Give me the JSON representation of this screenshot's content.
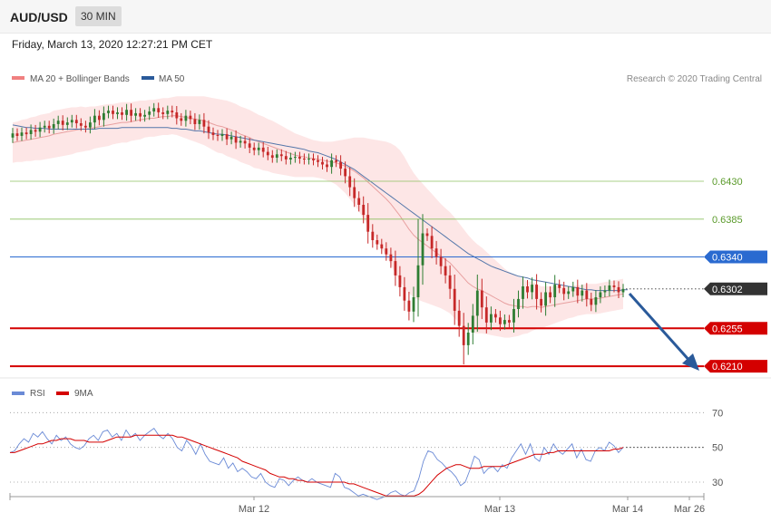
{
  "header": {
    "symbol": "AUD/USD",
    "timeframe": "30 MIN",
    "datetime": "Friday, March 13, 2020 12:27:21 PM CET"
  },
  "legend": {
    "ma20_bb": "MA 20 + Bollinger Bands",
    "ma50": "MA 50",
    "credit": "Research © 2020 Trading Central",
    "rsi": "RSI",
    "rsi_ma": "9MA"
  },
  "colors": {
    "up": "#2e7d32",
    "down": "#c62828",
    "bb_fill": "#fde0e0",
    "ma20": "#e8a0a0",
    "ma50": "#5577aa",
    "resistance_green": "#8cc060",
    "pivot_blue": "#2a6ad0",
    "support_red": "#d40000",
    "current": "#333333",
    "arrow": "#2a5a9a"
  },
  "chart_data": [
    {
      "type": "candlestick",
      "title": "AUD/USD",
      "ylim": [
        0.6195,
        0.654
      ],
      "x_labels": [
        "Mar 12",
        "Mar 13",
        "Mar 14",
        "Mar 26"
      ],
      "levels": [
        {
          "name": "resistance-2",
          "value": 0.643,
          "label": "0.6430",
          "style": "green-thin"
        },
        {
          "name": "resistance-1",
          "value": 0.6385,
          "label": "0.6385",
          "style": "green-thin"
        },
        {
          "name": "pivot",
          "value": 0.634,
          "label": "0.6340",
          "style": "blue"
        },
        {
          "name": "current",
          "value": 0.6302,
          "label": "0.6302",
          "style": "dark-dotted"
        },
        {
          "name": "support-1",
          "value": 0.6255,
          "label": "0.6255",
          "style": "red"
        },
        {
          "name": "support-2",
          "value": 0.621,
          "label": "0.6210",
          "style": "red"
        }
      ],
      "close": [
        0.6487,
        0.6484,
        0.6488,
        0.6486,
        0.6491,
        0.6489,
        0.6494,
        0.6496,
        0.6493,
        0.6498,
        0.6502,
        0.6497,
        0.65,
        0.6503,
        0.6499,
        0.6496,
        0.6494,
        0.65,
        0.6508,
        0.6503,
        0.6511,
        0.6514,
        0.651,
        0.6512,
        0.6509,
        0.6515,
        0.6508,
        0.6511,
        0.6507,
        0.6509,
        0.6513,
        0.6517,
        0.6512,
        0.651,
        0.6514,
        0.6512,
        0.6505,
        0.6502,
        0.6508,
        0.6504,
        0.6498,
        0.6503,
        0.6495,
        0.6488,
        0.6485,
        0.6484,
        0.6486,
        0.648,
        0.6483,
        0.6476,
        0.6478,
        0.6475,
        0.647,
        0.6467,
        0.647,
        0.6465,
        0.6461,
        0.6458,
        0.6462,
        0.646,
        0.6456,
        0.6458,
        0.6459,
        0.6457,
        0.6456,
        0.6457,
        0.6455,
        0.6453,
        0.645,
        0.6447,
        0.6455,
        0.6453,
        0.6445,
        0.6436,
        0.6423,
        0.641,
        0.6402,
        0.639,
        0.637,
        0.636,
        0.6355,
        0.635,
        0.6343,
        0.6335,
        0.6318,
        0.6304,
        0.6288,
        0.6275,
        0.6292,
        0.633,
        0.6368,
        0.6365,
        0.635,
        0.634,
        0.6329,
        0.6318,
        0.6302,
        0.6276,
        0.6258,
        0.6235,
        0.625,
        0.627,
        0.63,
        0.628,
        0.6262,
        0.6272,
        0.6268,
        0.626,
        0.6265,
        0.6262,
        0.6278,
        0.629,
        0.6305,
        0.6298,
        0.6307,
        0.629,
        0.6282,
        0.6298,
        0.6292,
        0.6307,
        0.6303,
        0.6296,
        0.6299,
        0.6304,
        0.6294,
        0.63,
        0.629,
        0.6283,
        0.6292,
        0.6298,
        0.63,
        0.6306,
        0.6304,
        0.6298,
        0.6302
      ],
      "ma20": [
        0.6476,
        0.6477,
        0.6478,
        0.6479,
        0.648,
        0.6481,
        0.6482,
        0.6483,
        0.6484,
        0.6486,
        0.6487,
        0.6488,
        0.6489,
        0.649,
        0.6491,
        0.6492,
        0.6492,
        0.6493,
        0.6494,
        0.6495,
        0.6496,
        0.6497,
        0.6498,
        0.6499,
        0.65,
        0.65,
        0.6501,
        0.6502,
        0.6503,
        0.6504,
        0.6505,
        0.6505,
        0.6506,
        0.6507,
        0.6507,
        0.6508,
        0.6508,
        0.6507,
        0.6506,
        0.6505,
        0.6504,
        0.6503,
        0.6502,
        0.65,
        0.6498,
        0.6496,
        0.6495,
        0.6493,
        0.6491,
        0.6489,
        0.6486,
        0.6484,
        0.6482,
        0.6479,
        0.6477,
        0.6475,
        0.6473,
        0.6471,
        0.6469,
        0.6467,
        0.6465,
        0.6463,
        0.6461,
        0.646,
        0.6459,
        0.6458,
        0.6457,
        0.6456,
        0.6455,
        0.6454,
        0.6453,
        0.6452,
        0.645,
        0.6448,
        0.6445,
        0.6442,
        0.6438,
        0.6434,
        0.6429,
        0.6424,
        0.6419,
        0.6414,
        0.6409,
        0.6403,
        0.6396,
        0.6389,
        0.6381,
        0.6373,
        0.6366,
        0.6361,
        0.6357,
        0.6353,
        0.6349,
        0.6345,
        0.6341,
        0.6337,
        0.6333,
        0.6327,
        0.6321,
        0.6315,
        0.6309,
        0.6305,
        0.6302,
        0.63,
        0.6297,
        0.6294,
        0.6291,
        0.6288,
        0.6285,
        0.6283,
        0.6282,
        0.6281,
        0.6281,
        0.628,
        0.6281,
        0.6281,
        0.628,
        0.6281,
        0.6282,
        0.6283,
        0.6284,
        0.6285,
        0.6286,
        0.6287,
        0.6288,
        0.6289,
        0.629,
        0.629,
        0.629,
        0.6291,
        0.6292,
        0.6293,
        0.6294,
        0.6295,
        0.6296
      ],
      "ma50": [
        0.6497,
        0.6496,
        0.6495,
        0.6494,
        0.6494,
        0.6493,
        0.6493,
        0.6493,
        0.6492,
        0.6492,
        0.6492,
        0.6492,
        0.6492,
        0.6492,
        0.6492,
        0.6492,
        0.6492,
        0.6492,
        0.6492,
        0.6493,
        0.6493,
        0.6493,
        0.6493,
        0.6493,
        0.6494,
        0.6494,
        0.6494,
        0.6494,
        0.6494,
        0.6494,
        0.6494,
        0.6494,
        0.6494,
        0.6494,
        0.6494,
        0.6493,
        0.6493,
        0.6492,
        0.6492,
        0.6491,
        0.649,
        0.649,
        0.6489,
        0.6488,
        0.6487,
        0.6486,
        0.6486,
        0.6485,
        0.6484,
        0.6483,
        0.6482,
        0.6481,
        0.648,
        0.6479,
        0.6478,
        0.6477,
        0.6476,
        0.6475,
        0.6474,
        0.6473,
        0.6472,
        0.6471,
        0.647,
        0.6469,
        0.6468,
        0.6466,
        0.6465,
        0.6464,
        0.6462,
        0.646,
        0.6458,
        0.6456,
        0.6453,
        0.645,
        0.6447,
        0.6444,
        0.644,
        0.6436,
        0.6432,
        0.6428,
        0.6424,
        0.642,
        0.6416,
        0.6412,
        0.6408,
        0.6404,
        0.64,
        0.6396,
        0.6392,
        0.6388,
        0.6384,
        0.638,
        0.6376,
        0.6372,
        0.6368,
        0.6364,
        0.636,
        0.6356,
        0.6352,
        0.6348,
        0.6344,
        0.6341,
        0.6338,
        0.6335,
        0.6332,
        0.6329,
        0.6327,
        0.6325,
        0.6323,
        0.6321,
        0.6319,
        0.6317,
        0.6316,
        0.6315,
        0.6313,
        0.6312,
        0.6311,
        0.631,
        0.6309,
        0.6308,
        0.6307,
        0.6306,
        0.6305,
        0.6304,
        0.6303,
        0.6302,
        0.6301,
        0.6301,
        0.63,
        0.63,
        0.63,
        0.63,
        0.63,
        0.63,
        0.6301,
        0.6301
      ],
      "bb_width": [
        0.0024,
        0.0024,
        0.0025,
        0.0025,
        0.0026,
        0.0026,
        0.0027,
        0.0027,
        0.0027,
        0.0028,
        0.0028,
        0.0028,
        0.0028,
        0.0028,
        0.0027,
        0.0027,
        0.0026,
        0.0026,
        0.0025,
        0.0025,
        0.0025,
        0.0025,
        0.0024,
        0.0024,
        0.0024,
        0.0024,
        0.0023,
        0.0023,
        0.0023,
        0.0022,
        0.0022,
        0.0022,
        0.0022,
        0.0022,
        0.0022,
        0.0022,
        0.0023,
        0.0024,
        0.0025,
        0.0026,
        0.0027,
        0.0028,
        0.0029,
        0.003,
        0.0031,
        0.0032,
        0.0032,
        0.0033,
        0.0033,
        0.0033,
        0.0033,
        0.0033,
        0.0033,
        0.0033,
        0.0032,
        0.0032,
        0.0031,
        0.0031,
        0.003,
        0.0029,
        0.0028,
        0.0027,
        0.0026,
        0.0025,
        0.0024,
        0.0023,
        0.0022,
        0.0022,
        0.0022,
        0.0023,
        0.0024,
        0.0026,
        0.0029,
        0.0032,
        0.0036,
        0.004,
        0.0044,
        0.0048,
        0.0052,
        0.0056,
        0.006,
        0.0064,
        0.0068,
        0.0072,
        0.0076,
        0.0078,
        0.0078,
        0.0076,
        0.0074,
        0.0072,
        0.007,
        0.0068,
        0.0066,
        0.0064,
        0.0062,
        0.0061,
        0.006,
        0.006,
        0.0059,
        0.0058,
        0.0057,
        0.0055,
        0.0053,
        0.0051,
        0.0049,
        0.0047,
        0.0045,
        0.0043,
        0.0041,
        0.0039,
        0.0037,
        0.0035,
        0.0033,
        0.0031,
        0.0029,
        0.0027,
        0.0025,
        0.0024,
        0.0023,
        0.0022,
        0.0021,
        0.002,
        0.0019,
        0.0019,
        0.0018,
        0.0018,
        0.0018,
        0.0018,
        0.0018,
        0.0018,
        0.0018,
        0.0018,
        0.0018,
        0.0018,
        0.0018,
        0.0018,
        0.0018
      ]
    },
    {
      "type": "line",
      "title": "RSI",
      "ylim": [
        18,
        78
      ],
      "y_ticks": [
        70,
        50,
        30
      ],
      "series": [
        {
          "name": "RSI",
          "values": [
            47,
            48,
            52,
            55,
            53,
            58,
            56,
            59,
            55,
            52,
            57,
            54,
            56,
            52,
            50,
            49,
            51,
            55,
            57,
            54,
            59,
            60,
            56,
            58,
            54,
            60,
            56,
            58,
            54,
            57,
            59,
            61,
            57,
            55,
            58,
            55,
            50,
            48,
            54,
            51,
            46,
            52,
            46,
            42,
            41,
            40,
            44,
            38,
            41,
            36,
            38,
            36,
            33,
            32,
            35,
            30,
            28,
            27,
            32,
            31,
            28,
            31,
            33,
            31,
            30,
            32,
            30,
            29,
            28,
            27,
            35,
            33,
            27,
            26,
            24,
            22,
            23,
            22,
            21,
            20,
            21,
            22,
            24,
            25,
            23,
            22,
            24,
            25,
            32,
            42,
            48,
            47,
            43,
            41,
            38,
            36,
            33,
            28,
            30,
            37,
            45,
            43,
            35,
            38,
            39,
            36,
            40,
            38,
            44,
            48,
            52,
            46,
            52,
            44,
            42,
            50,
            46,
            52,
            48,
            46,
            49,
            52,
            44,
            49,
            43,
            42,
            48,
            50,
            48,
            53,
            51,
            47,
            50
          ]
        },
        {
          "name": "9MA",
          "values": [
            47,
            47,
            48,
            49,
            50,
            51,
            52,
            52,
            53,
            54,
            54,
            55,
            55,
            55,
            54,
            54,
            54,
            53,
            53,
            53,
            53,
            54,
            55,
            56,
            56,
            56,
            56,
            57,
            57,
            57,
            57,
            57,
            57,
            57,
            57,
            57,
            56,
            56,
            55,
            54,
            53,
            52,
            51,
            50,
            49,
            48,
            47,
            46,
            45,
            44,
            42,
            41,
            40,
            39,
            38,
            37,
            35,
            34,
            33,
            33,
            32,
            32,
            31,
            31,
            30,
            30,
            30,
            30,
            30,
            30,
            30,
            30,
            30,
            29,
            29,
            28,
            27,
            26,
            25,
            24,
            23,
            22,
            22,
            22,
            22,
            22,
            22,
            22,
            23,
            25,
            28,
            31,
            34,
            36,
            38,
            39,
            40,
            40,
            39,
            38,
            38,
            38,
            39,
            39,
            39,
            39,
            39,
            40,
            41,
            42,
            43,
            44,
            45,
            46,
            46,
            46,
            47,
            47,
            48,
            48,
            48,
            48,
            48,
            48,
            48,
            48,
            48,
            48,
            48,
            48,
            49,
            49,
            50
          ]
        }
      ]
    }
  ]
}
